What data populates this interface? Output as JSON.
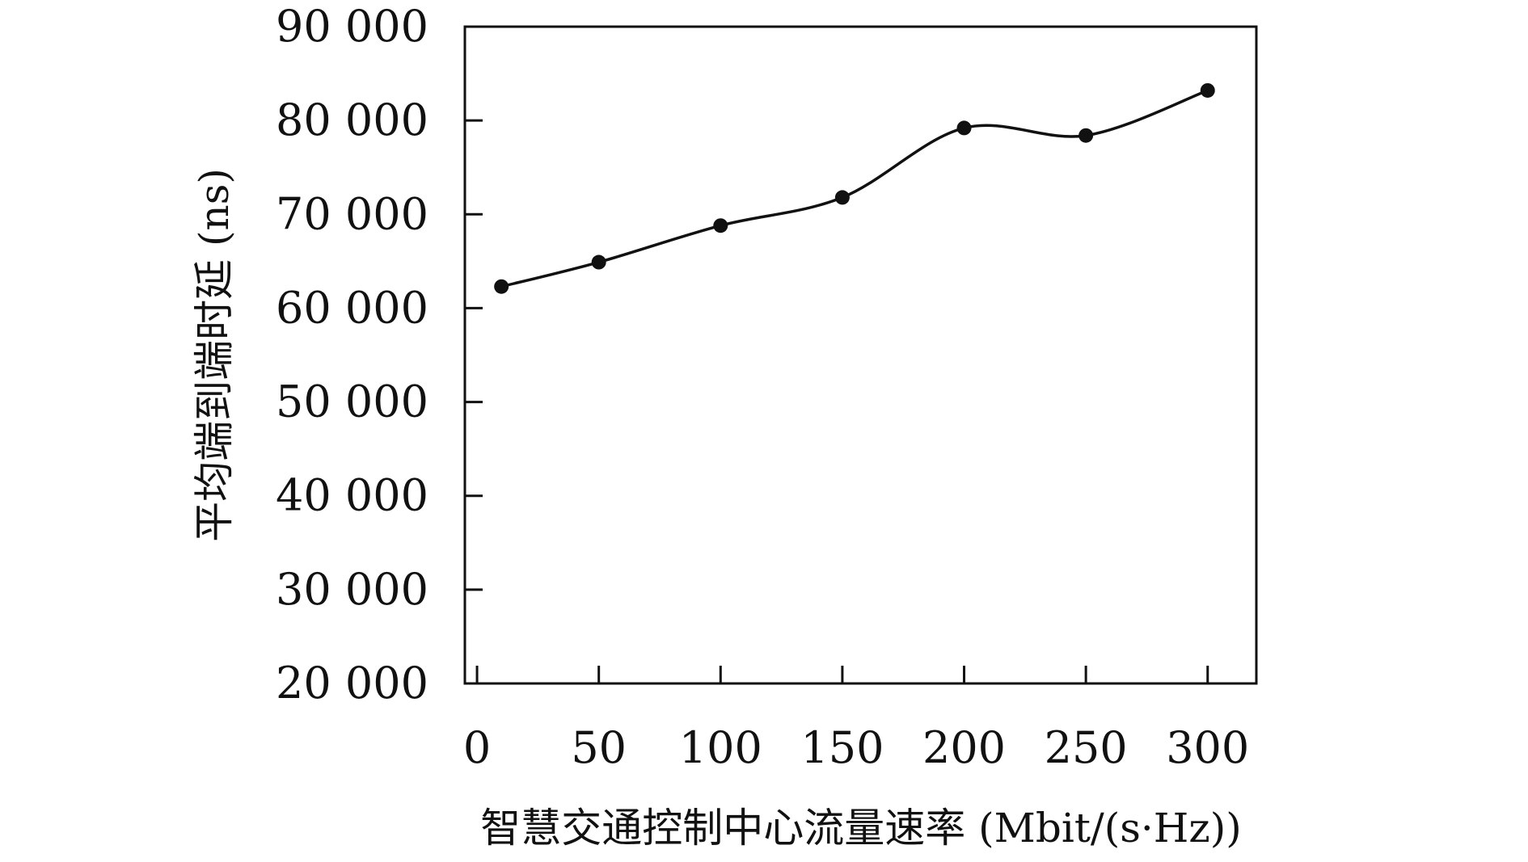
{
  "chart_data": {
    "type": "line",
    "title": "",
    "xlabel": "智慧交通控制中心流量速率 (Mbit/(s·Hz))",
    "ylabel": "平均端到端时延 (ns)",
    "xlim": [
      -5,
      320
    ],
    "ylim": [
      20000,
      90000
    ],
    "x_ticks": [
      0,
      50,
      100,
      150,
      200,
      250,
      300
    ],
    "x_tick_labels": [
      "0",
      "50",
      "100",
      "150",
      "200",
      "250",
      "300"
    ],
    "y_ticks": [
      20000,
      30000,
      40000,
      50000,
      60000,
      70000,
      80000,
      90000
    ],
    "y_tick_labels": [
      "20 000",
      "30 000",
      "40 000",
      "50 000",
      "60 000",
      "70 000",
      "80 000",
      "90 000"
    ],
    "grid": false,
    "legend": "none",
    "series": [
      {
        "x": [
          10,
          50,
          100,
          150,
          200,
          250,
          300
        ],
        "values": [
          62300,
          64900,
          68800,
          71800,
          79200,
          78400,
          83200
        ],
        "color": "#111111",
        "marker": "circle",
        "smooth": true
      }
    ]
  }
}
